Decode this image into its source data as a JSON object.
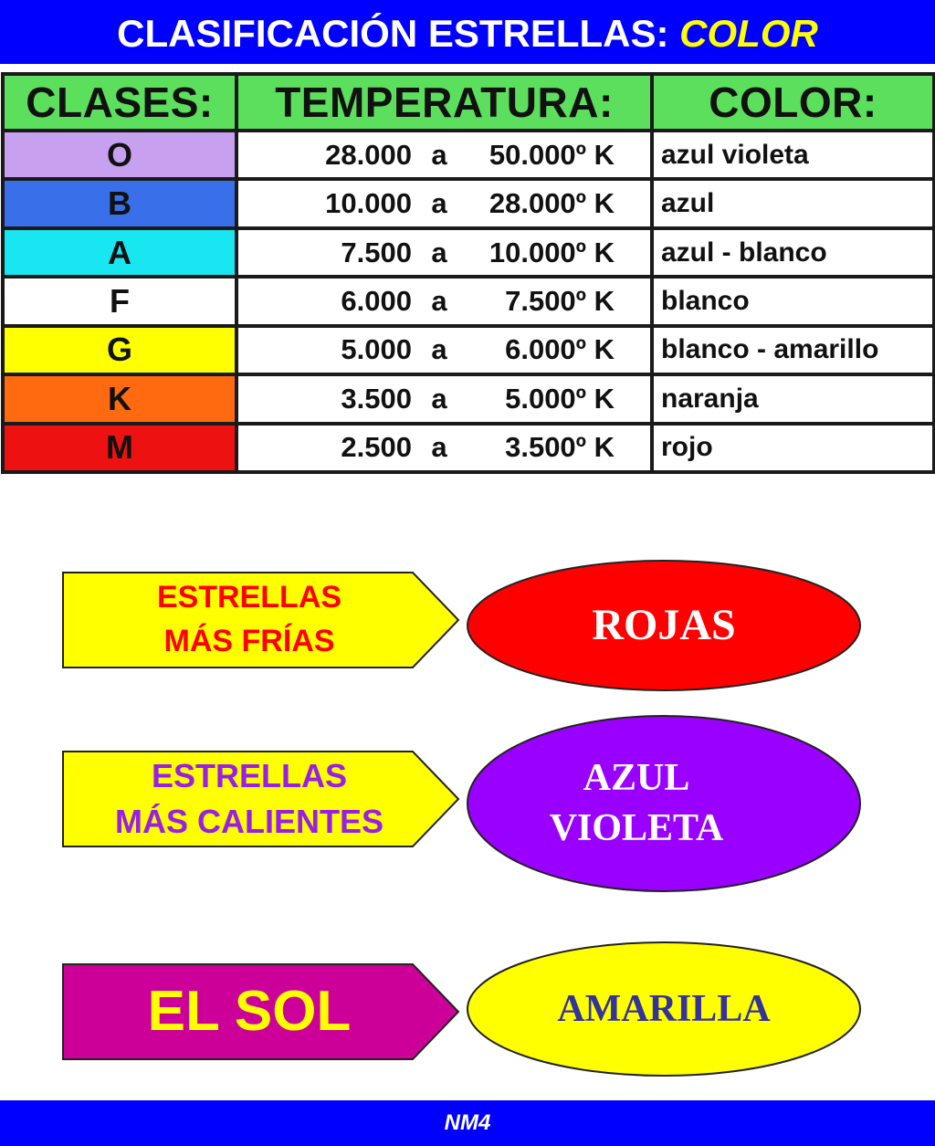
{
  "title": {
    "main": "CLASIFICACIÓN ESTRELLAS: ",
    "highlight": "COLOR"
  },
  "table": {
    "headers": [
      "CLASES:",
      "TEMPERATURA:",
      "COLOR:"
    ],
    "rows": [
      {
        "class": "O",
        "from": "28.000",
        "sep": "a",
        "to": "50.000º K",
        "color": "azul violeta",
        "swatch": "#c8a0f0"
      },
      {
        "class": "B",
        "from": "10.000",
        "sep": "a",
        "to": "28.000º K",
        "color": "azul",
        "swatch": "#3a6fea"
      },
      {
        "class": "A",
        "from": "7.500",
        "sep": "a",
        "to": "10.000º K",
        "color": "azul - blanco",
        "swatch": "#18e6f0"
      },
      {
        "class": "F",
        "from": "6.000",
        "sep": "a",
        "to": "7.500º K",
        "color": "blanco",
        "swatch": "#ffffff"
      },
      {
        "class": "G",
        "from": "5.000",
        "sep": "a",
        "to": "6.000º K",
        "color": "blanco - amarillo",
        "swatch": "#ffff00"
      },
      {
        "class": "K",
        "from": "3.500",
        "sep": "a",
        "to": "5.000º K",
        "color": "naranja",
        "swatch": "#ff6a10"
      },
      {
        "class": "M",
        "from": "2.500",
        "sep": "a",
        "to": "3.500º K",
        "color": "rojo",
        "swatch": "#ee1111"
      }
    ]
  },
  "callouts": [
    {
      "arrow_lines": [
        "ESTRELLAS",
        "MÁS FRÍAS"
      ],
      "arrow_fill": "#ffff00",
      "arrow_text_color": "#ff0000",
      "ellipse_lines": [
        "ROJAS"
      ],
      "ellipse_fill": "#ff0000",
      "ellipse_text_color": "#ffffff"
    },
    {
      "arrow_lines": [
        "ESTRELLAS",
        "MÁS CALIENTES"
      ],
      "arrow_fill": "#ffff00",
      "arrow_text_color": "#9a1fe6",
      "ellipse_lines": [
        "AZUL",
        "VIOLETA"
      ],
      "ellipse_fill": "#9900ff",
      "ellipse_text_color": "#ffffff"
    },
    {
      "arrow_lines": [
        "EL SOL"
      ],
      "arrow_fill": "#cc0099",
      "arrow_text_color": "#ffff00",
      "ellipse_lines": [
        "AMARILLA"
      ],
      "ellipse_fill": "#ffff00",
      "ellipse_text_color": "#333399"
    }
  ],
  "footer": "NM4"
}
